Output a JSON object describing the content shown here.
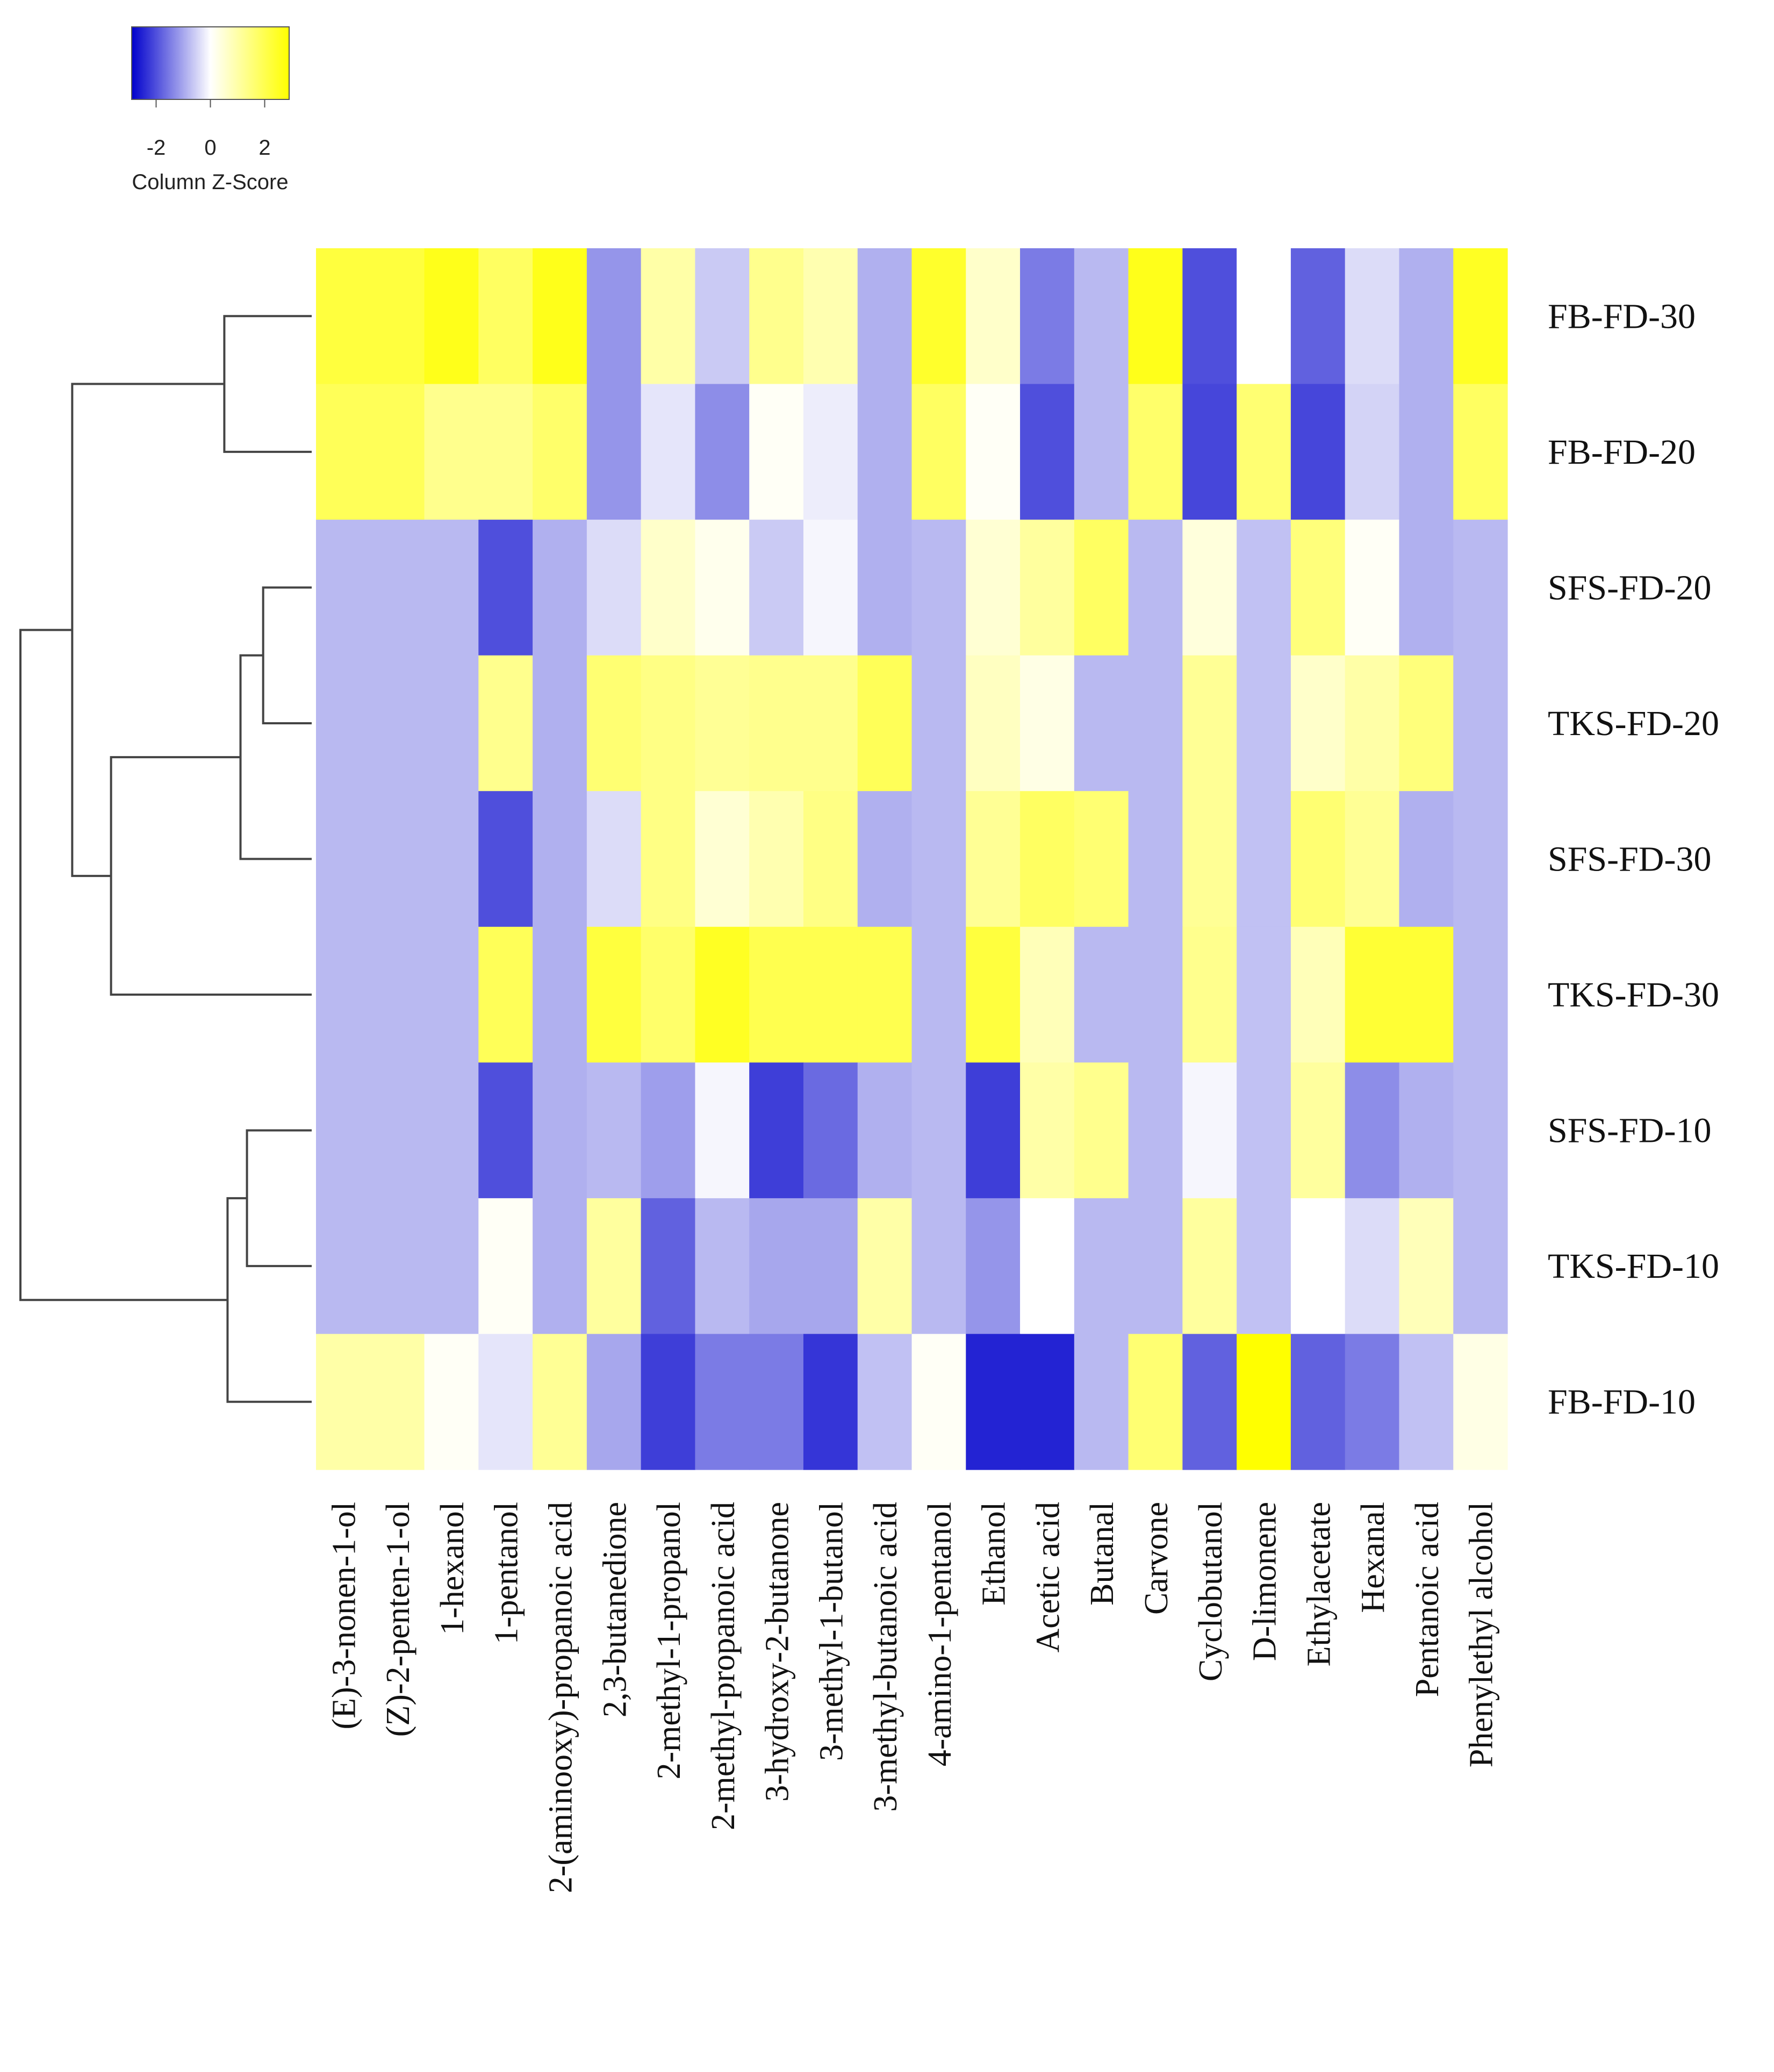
{
  "chart_data": {
    "type": "heatmap",
    "color_key": {
      "title": "Column Z-Score",
      "ticks": [
        "-2",
        "0",
        "2"
      ],
      "tick_values": [
        -2,
        0,
        2
      ],
      "range": [
        -2.9,
        2.9
      ],
      "colors": {
        "low": "#0000cc",
        "mid": "#ffffff",
        "high": "#ffff00"
      }
    },
    "rows": [
      "FB-FD-30",
      "FB-FD-20",
      "SFS-FD-20",
      "TKS-FD-20",
      "SFS-FD-30",
      "TKS-FD-30",
      "SFS-FD-10",
      "TKS-FD-10",
      "FB-FD-10"
    ],
    "columns": [
      "(E)-3-nonen-1-ol",
      "(Z)-2-penten-1-ol",
      "1-hexanol",
      "1-pentanol",
      "2-(aminooxy)-propanoic acid",
      "2,3-butanedione",
      "2-methyl-1-propanol",
      "2-methyl-propanoic acid",
      "3-hydroxy-2-butanone",
      "3-methyl-1-butanol",
      "3-methyl-butanoic acid",
      "4-amino-1-pentanol",
      "Ethanol",
      "Acetic acid",
      "Butanal",
      "Carvone",
      "Cyclobutanol",
      "D-limonene",
      "Ethylacetate",
      "Hexanal",
      "Pentanoic acid",
      "Phenylethyl alcohol"
    ],
    "values": [
      [
        2.2,
        2.2,
        2.6,
        1.8,
        2.6,
        -1.2,
        1.0,
        -0.6,
        1.3,
        0.9,
        -0.9,
        2.4,
        0.6,
        -1.5,
        -0.8,
        2.6,
        -2.0,
        0.0,
        -1.8,
        -0.4,
        -0.9,
        2.5
      ],
      [
        1.9,
        1.9,
        1.3,
        1.3,
        1.7,
        -1.2,
        -0.3,
        -1.3,
        0.1,
        -0.2,
        -0.9,
        1.8,
        0.1,
        -2.0,
        -0.8,
        1.7,
        -2.1,
        1.6,
        -2.1,
        -0.5,
        -0.9,
        1.8
      ],
      [
        -0.8,
        -0.8,
        -0.8,
        -2.0,
        -0.9,
        -0.4,
        0.6,
        0.2,
        -0.6,
        -0.1,
        -0.9,
        -0.8,
        0.5,
        1.1,
        1.8,
        -0.8,
        0.4,
        -0.7,
        1.5,
        0.1,
        -0.9,
        -0.8
      ],
      [
        -0.8,
        -0.8,
        -0.8,
        1.3,
        -0.9,
        1.6,
        1.4,
        1.2,
        1.3,
        1.3,
        1.9,
        -0.8,
        0.7,
        0.3,
        -0.8,
        -0.8,
        1.2,
        -0.7,
        0.6,
        1.0,
        1.5,
        -0.8
      ],
      [
        -0.8,
        -0.8,
        -0.8,
        -2.0,
        -0.9,
        -0.4,
        1.4,
        0.5,
        0.9,
        1.4,
        -0.9,
        -0.8,
        1.2,
        1.8,
        1.6,
        -0.8,
        1.2,
        -0.7,
        1.6,
        1.2,
        -0.9,
        -0.8
      ],
      [
        -0.8,
        -0.8,
        -0.8,
        1.9,
        -0.9,
        2.2,
        1.7,
        2.5,
        2.0,
        2.0,
        2.0,
        -0.8,
        2.2,
        0.8,
        -0.8,
        -0.8,
        1.3,
        -0.7,
        0.8,
        2.3,
        2.3,
        -0.8
      ],
      [
        -0.8,
        -0.8,
        -0.8,
        -2.0,
        -0.9,
        -0.8,
        -1.1,
        -0.1,
        -2.2,
        -1.7,
        -0.9,
        -0.8,
        -2.2,
        1.0,
        1.3,
        -0.8,
        -0.1,
        -0.7,
        1.1,
        -1.3,
        -0.9,
        -0.8
      ],
      [
        -0.8,
        -0.8,
        -0.8,
        0.1,
        -0.9,
        1.1,
        -1.8,
        -0.8,
        -1.0,
        -1.0,
        1.0,
        -0.8,
        -1.2,
        0.0,
        -0.8,
        -0.8,
        1.1,
        -0.7,
        0.0,
        -0.4,
        0.8,
        -0.8
      ],
      [
        1.0,
        1.0,
        0.1,
        -0.3,
        1.2,
        -1.0,
        -2.2,
        -1.5,
        -1.5,
        -2.3,
        -0.7,
        0.1,
        -2.5,
        -2.5,
        -0.8,
        1.6,
        -1.8,
        2.9,
        -1.8,
        -1.5,
        -0.7,
        0.3
      ]
    ],
    "row_dendrogram": {
      "leaf_order": [
        "FB-FD-30",
        "FB-FD-20",
        "SFS-FD-20",
        "TKS-FD-20",
        "SFS-FD-30",
        "TKS-FD-30",
        "SFS-FD-10",
        "TKS-FD-10",
        "FB-FD-10"
      ],
      "merges": [
        {
          "a": "FB-FD-30",
          "b": "FB-FD-20",
          "height": 0.27
        },
        {
          "a": "SFS-FD-20",
          "b": "TKS-FD-20",
          "height": 0.15
        },
        {
          "a": "SFS-FD-10",
          "b": "TKS-FD-10",
          "height": 0.2
        },
        {
          "a": "m2",
          "b": "SFS-FD-30",
          "height": 0.22
        },
        {
          "a": "m3",
          "b": "FB-FD-10",
          "height": 0.26
        },
        {
          "a": "m4",
          "b": "TKS-FD-30",
          "height": 0.62
        },
        {
          "a": "m1",
          "b": "m6",
          "height": 0.74
        },
        {
          "a": "m7",
          "b": "m5",
          "height": 0.9
        }
      ]
    }
  }
}
